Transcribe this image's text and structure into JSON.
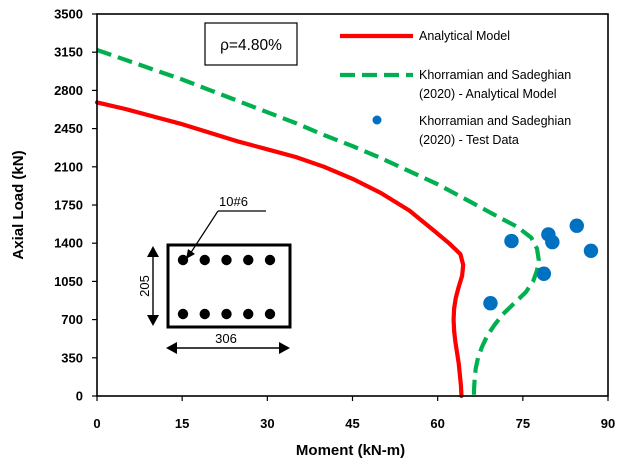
{
  "chart_data": {
    "type": "line",
    "title": "",
    "xlabel": "Moment (kN-m)",
    "ylabel": "Axial Load (kN)",
    "xlim": [
      0,
      90
    ],
    "ylim": [
      0,
      3500
    ],
    "x_ticks": [
      "0",
      "15",
      "30",
      "45",
      "60",
      "75",
      "90"
    ],
    "y_ticks": [
      "0",
      "350",
      "700",
      "1050",
      "1400",
      "1750",
      "2100",
      "2450",
      "2800",
      "3150",
      "3500"
    ],
    "grid": false,
    "legend_position": "top-right",
    "annotation": "ρ=4.80%",
    "series": [
      {
        "name": "Analytical Model",
        "style": "solid",
        "color": "#ff0000",
        "points": [
          [
            0,
            2690
          ],
          [
            5,
            2630
          ],
          [
            10,
            2560
          ],
          [
            15,
            2490
          ],
          [
            20,
            2410
          ],
          [
            25,
            2330
          ],
          [
            30,
            2260
          ],
          [
            35,
            2190
          ],
          [
            40,
            2100
          ],
          [
            45,
            1990
          ],
          [
            50,
            1860
          ],
          [
            55,
            1700
          ],
          [
            59,
            1530
          ],
          [
            62,
            1400
          ],
          [
            64,
            1300
          ],
          [
            64.5,
            1200
          ],
          [
            64.3,
            1100
          ],
          [
            63.7,
            1000
          ],
          [
            63.2,
            900
          ],
          [
            62.9,
            800
          ],
          [
            62.8,
            700
          ],
          [
            62.9,
            600
          ],
          [
            63.1,
            500
          ],
          [
            63.4,
            400
          ],
          [
            63.7,
            300
          ],
          [
            63.9,
            200
          ],
          [
            64.1,
            100
          ],
          [
            64.2,
            0
          ]
        ]
      },
      {
        "name": "Khorramian and Sadeghian (2020) - Analytical Model",
        "style": "dashed",
        "color": "#00b050",
        "points": [
          [
            0,
            3170
          ],
          [
            5,
            3080
          ],
          [
            10,
            2990
          ],
          [
            15,
            2900
          ],
          [
            20,
            2800
          ],
          [
            25,
            2700
          ],
          [
            30,
            2600
          ],
          [
            35,
            2500
          ],
          [
            40,
            2390
          ],
          [
            45,
            2290
          ],
          [
            50,
            2180
          ],
          [
            55,
            2060
          ],
          [
            60,
            1940
          ],
          [
            65,
            1800
          ],
          [
            70,
            1660
          ],
          [
            74,
            1550
          ],
          [
            76.5,
            1450
          ],
          [
            77.5,
            1350
          ],
          [
            77.8,
            1250
          ],
          [
            77.5,
            1150
          ],
          [
            76.8,
            1050
          ],
          [
            75.5,
            950
          ],
          [
            73.5,
            850
          ],
          [
            71.5,
            750
          ],
          [
            70,
            650
          ],
          [
            68.7,
            550
          ],
          [
            67.8,
            450
          ],
          [
            67.1,
            350
          ],
          [
            66.7,
            250
          ],
          [
            66.5,
            150
          ],
          [
            66.4,
            50
          ],
          [
            66.4,
            0
          ]
        ]
      },
      {
        "name": "Khorramian and Sadeghian (2020) - Test Data",
        "style": "markers",
        "color": "#0070c0",
        "points": [
          [
            73,
            1420
          ],
          [
            79.5,
            1480
          ],
          [
            80.2,
            1410
          ],
          [
            84.5,
            1560
          ],
          [
            87,
            1330
          ],
          [
            78.7,
            1120
          ],
          [
            69.3,
            850
          ]
        ]
      }
    ],
    "inset": {
      "label_bars": "10#6",
      "dim_height": "205",
      "dim_width": "306",
      "rebar_rows": 2,
      "rebars_per_row": 5
    }
  }
}
